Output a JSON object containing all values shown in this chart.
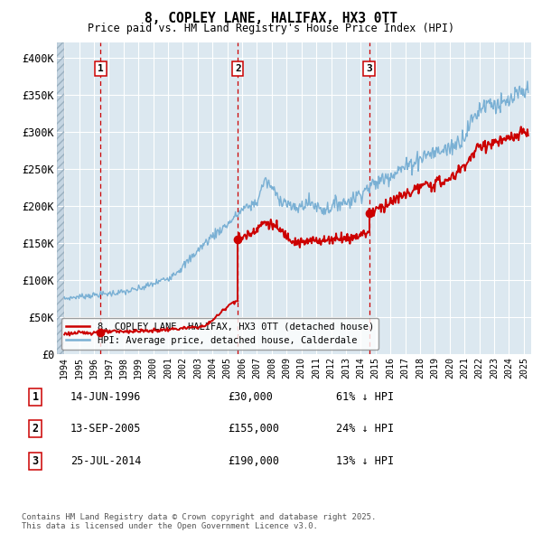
{
  "title": "8, COPLEY LANE, HALIFAX, HX3 0TT",
  "subtitle": "Price paid vs. HM Land Registry's House Price Index (HPI)",
  "ylim": [
    0,
    420000
  ],
  "yticks": [
    0,
    50000,
    100000,
    150000,
    200000,
    250000,
    300000,
    350000,
    400000
  ],
  "ytick_labels": [
    "£0",
    "£50K",
    "£100K",
    "£150K",
    "£200K",
    "£250K",
    "£300K",
    "£350K",
    "£400K"
  ],
  "background_color": "#ffffff",
  "plot_bg_color": "#dce8f0",
  "grid_color": "#ffffff",
  "sale_color": "#cc0000",
  "hpi_color": "#7ab0d4",
  "vline_color": "#cc0000",
  "purchases": [
    {
      "label": "1",
      "date_num": 1996.45,
      "price": 30000,
      "date_str": "14-JUN-1996",
      "pct": "61% ↓ HPI"
    },
    {
      "label": "2",
      "date_num": 2005.71,
      "price": 155000,
      "date_str": "13-SEP-2005",
      "pct": "24% ↓ HPI"
    },
    {
      "label": "3",
      "date_num": 2014.56,
      "price": 190000,
      "date_str": "25-JUL-2014",
      "pct": "13% ↓ HPI"
    }
  ],
  "legend_entries": [
    "8, COPLEY LANE, HALIFAX, HX3 0TT (detached house)",
    "HPI: Average price, detached house, Calderdale"
  ],
  "footnote": "Contains HM Land Registry data © Crown copyright and database right 2025.\nThis data is licensed under the Open Government Licence v3.0.",
  "xlim": [
    1993.5,
    2025.5
  ],
  "xticks": [
    1994,
    1995,
    1996,
    1997,
    1998,
    1999,
    2000,
    2001,
    2002,
    2003,
    2004,
    2005,
    2006,
    2007,
    2008,
    2009,
    2010,
    2011,
    2012,
    2013,
    2014,
    2015,
    2016,
    2017,
    2018,
    2019,
    2020,
    2021,
    2022,
    2023,
    2024,
    2025
  ]
}
